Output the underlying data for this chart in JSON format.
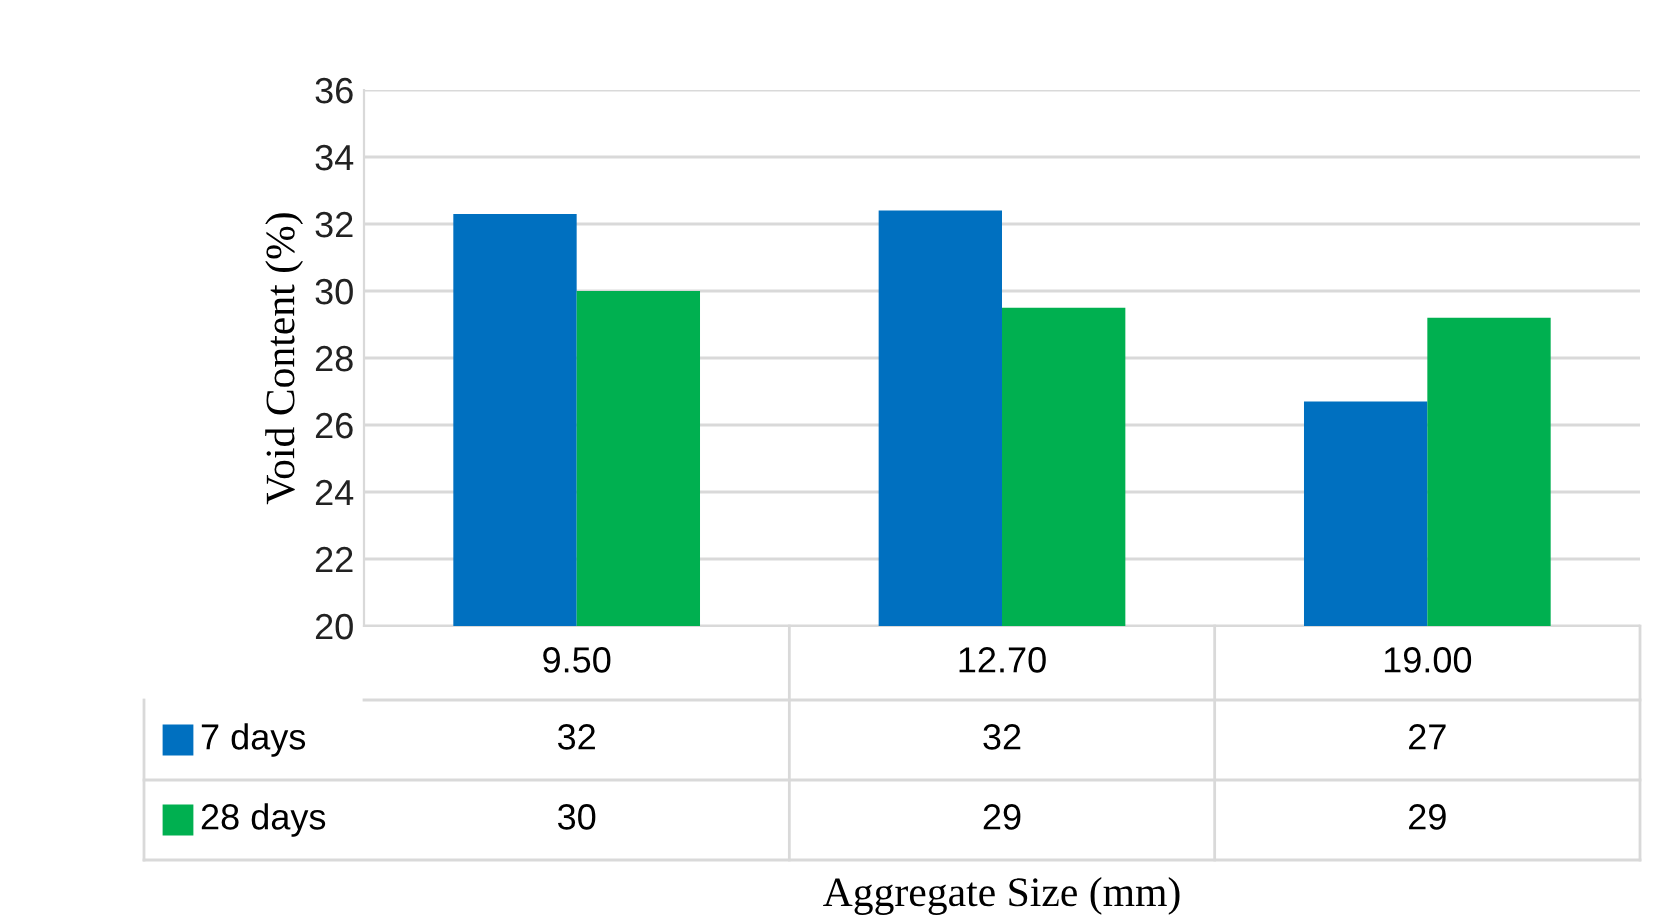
{
  "chart_data": {
    "type": "bar",
    "xlabel": "Aggregate Size (mm)",
    "ylabel": "Void Content (%)",
    "categories": [
      "9.50",
      "12.70",
      "19.00"
    ],
    "series": [
      {
        "name": "7 days",
        "color": "#0070c0",
        "values": [
          32.3,
          32.4,
          26.7
        ],
        "value_labels": [
          "32",
          "32",
          "27"
        ]
      },
      {
        "name": "28 days",
        "color": "#00b050",
        "values": [
          30.0,
          29.5,
          29.2
        ],
        "value_labels": [
          "30",
          "29",
          "29"
        ]
      }
    ],
    "ylim": [
      20,
      36
    ],
    "yticks": [
      20,
      22,
      24,
      26,
      28,
      30,
      32,
      34,
      36
    ],
    "grid": "y",
    "legend": "bottom"
  }
}
